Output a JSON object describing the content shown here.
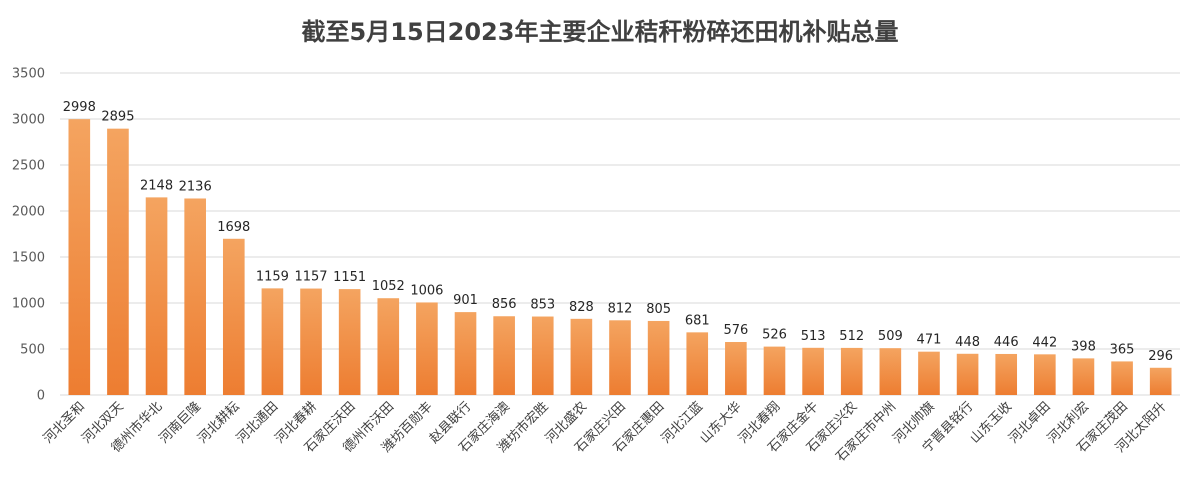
{
  "chart_data": {
    "type": "bar",
    "title": "截至5月15日2023年主要企业秸秆粉碎还田机补贴总量",
    "xlabel": "",
    "ylabel": "",
    "ylim": [
      0,
      3500
    ],
    "yticks": [
      0,
      500,
      1000,
      1500,
      2000,
      2500,
      3000,
      3500
    ],
    "grid": true,
    "legend": "none",
    "bar_color_top": "#f4a460",
    "bar_color_bottom": "#ed7d31",
    "categories": [
      "河北圣和",
      "河北双天",
      "德州市华北",
      "河南巨隆",
      "河北耕耘",
      "河北通田",
      "河北春耕",
      "石家庄沃田",
      "德州市沃田",
      "潍坊百勋丰",
      "赵县联行",
      "石家庄海澳",
      "潍坊市宏胜",
      "河北盛农",
      "石家庄兴田",
      "石家庄惠田",
      "河北江蓝",
      "山东大华",
      "河北春翔",
      "石家庄金牛",
      "石家庄兴农",
      "石家庄市中州",
      "河北帅旗",
      "宁晋县铭行",
      "山东玉收",
      "河北卓田",
      "河北利宏",
      "石家庄茂田",
      "河北太阳升"
    ],
    "values": [
      2998,
      2895,
      2148,
      2136,
      1698,
      1159,
      1157,
      1151,
      1052,
      1006,
      901,
      856,
      853,
      828,
      812,
      805,
      681,
      576,
      526,
      513,
      512,
      509,
      471,
      448,
      446,
      442,
      398,
      365,
      296
    ]
  }
}
